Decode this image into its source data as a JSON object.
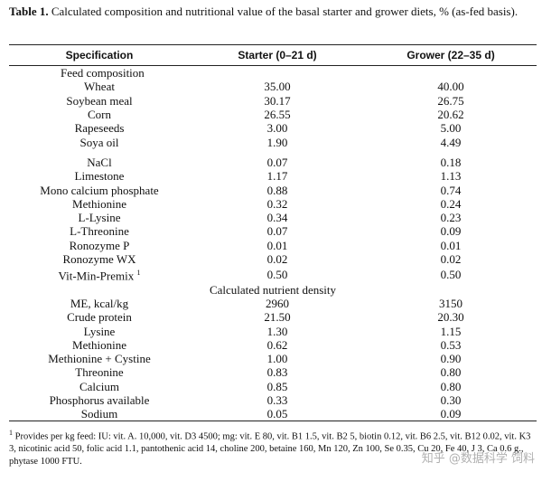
{
  "caption": {
    "label": "Table 1.",
    "text": "Calculated composition and nutritional value of the basal starter and grower diets, % (as-fed basis)."
  },
  "table": {
    "headers": [
      "Specification",
      "Starter (0–21 d)",
      "Grower (22–35 d)"
    ],
    "rows": [
      {
        "type": "section",
        "label": "Feed composition"
      },
      {
        "type": "data",
        "label": "Wheat",
        "starter": "35.00",
        "grower": "40.00"
      },
      {
        "type": "data",
        "label": "Soybean meal",
        "starter": "30.17",
        "grower": "26.75"
      },
      {
        "type": "data",
        "label": "Corn",
        "starter": "26.55",
        "grower": "20.62"
      },
      {
        "type": "data",
        "label": "Rapeseeds",
        "starter": "3.00",
        "grower": "5.00"
      },
      {
        "type": "data",
        "label": "Soya oil",
        "starter": "1.90",
        "grower": "4.49"
      },
      {
        "type": "spacer"
      },
      {
        "type": "data",
        "label": "NaCl",
        "starter": "0.07",
        "grower": "0.18"
      },
      {
        "type": "data",
        "label": "Limestone",
        "starter": "1.17",
        "grower": "1.13"
      },
      {
        "type": "data",
        "label": "Mono calcium phosphate",
        "starter": "0.88",
        "grower": "0.74"
      },
      {
        "type": "data",
        "label": "Methionine",
        "starter": "0.32",
        "grower": "0.24"
      },
      {
        "type": "data",
        "label": "L-Lysine",
        "starter": "0.34",
        "grower": "0.23"
      },
      {
        "type": "data",
        "label": "L-Threonine",
        "starter": "0.07",
        "grower": "0.09"
      },
      {
        "type": "data",
        "label": "Ronozyme P",
        "starter": "0.01",
        "grower": "0.01"
      },
      {
        "type": "data",
        "label": "Ronozyme WX",
        "starter": "0.02",
        "grower": "0.02"
      },
      {
        "type": "data",
        "label": "Vit-Min-Premix",
        "sup": "1",
        "starter": "0.50",
        "grower": "0.50"
      },
      {
        "type": "section",
        "label": "Calculated nutrient density"
      },
      {
        "type": "data",
        "label": "ME, kcal/kg",
        "starter": "2960",
        "grower": "3150"
      },
      {
        "type": "data",
        "label": "Crude protein",
        "starter": "21.50",
        "grower": "20.30"
      },
      {
        "type": "data",
        "label": "Lysine",
        "starter": "1.30",
        "grower": "1.15"
      },
      {
        "type": "data",
        "label": "Methionine",
        "starter": "0.62",
        "grower": "0.53"
      },
      {
        "type": "data",
        "label": "Methionine + Cystine",
        "starter": "1.00",
        "grower": "0.90"
      },
      {
        "type": "data",
        "label": "Threonine",
        "starter": "0.83",
        "grower": "0.80"
      },
      {
        "type": "data",
        "label": "Calcium",
        "starter": "0.85",
        "grower": "0.80"
      },
      {
        "type": "data",
        "label": "Phosphorus available",
        "starter": "0.33",
        "grower": "0.30"
      },
      {
        "type": "data",
        "label": "Sodium",
        "starter": "0.05",
        "grower": "0.09"
      }
    ]
  },
  "footnote": {
    "sup": "1",
    "text": "Provides per kg feed: IU: vit. A. 10,000, vit. D3 4500; mg: vit. E 80, vit. B1 1.5, vit. B2 5, biotin 0.12, vit. B6 2.5, vit. B12 0.02, vit. K3 3, nicotinic acid 50, folic acid 1.1, pantothenic acid 14, choline 200, betaine 160, Mn 120, Zn 100, Se 0.35, Cu 20, Fe 40, J 3, Ca 0.6 g., phytase 1000 FTU."
  },
  "watermark": "知乎 @数据科学 饲料"
}
